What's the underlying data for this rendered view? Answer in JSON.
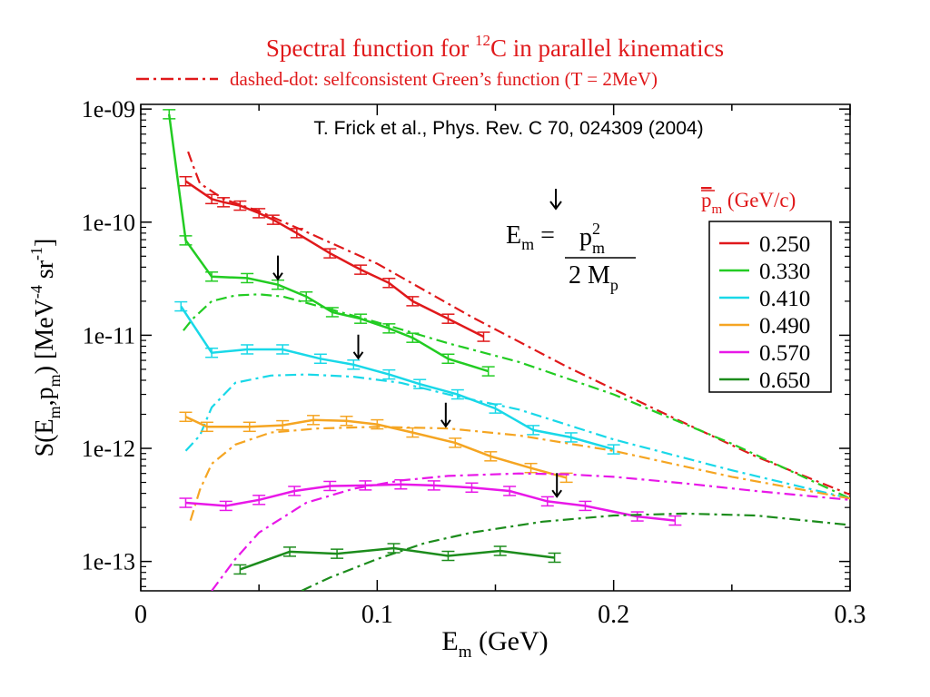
{
  "chart_data": {
    "type": "line",
    "title": "Spectral function for ¹²C in parallel kinematics",
    "title_parts": {
      "pre": "Spectral function for ",
      "sup": "12",
      "post": "C in parallel kinematics"
    },
    "subtitle": "dashed-dot: selfconsistent Green’s function (T = 2MeV)",
    "reference": "T. Frick et al., Phys. Rev. C 70, 024309 (2004)",
    "xlabel": "E_m (GeV)",
    "ylabel": "S(E_m,p_m) [MeV^-4 sr^-1]",
    "xlim": [
      0,
      0.3
    ],
    "ylim": [
      5.5e-14,
      1.1e-09
    ],
    "yscale": "log",
    "x_ticks": [
      0,
      0.1,
      0.2,
      0.3
    ],
    "x_tick_labels": [
      "0",
      "0.1",
      "0.2",
      "0.3"
    ],
    "y_ticks": [
      1e-13,
      1e-12,
      1e-11,
      1e-10,
      1e-09
    ],
    "y_tick_labels": [
      "1e-13",
      "1e-12",
      "1e-11",
      "1e-10",
      "1e-09"
    ],
    "legend_title": "p̄_m (GeV/c)",
    "legend_position": "right",
    "grid": false,
    "formula": "E_m = p²_m / 2 M_p",
    "series": [
      {
        "name": "0.250",
        "color": "#e0191b",
        "x": [
          0.019,
          0.03,
          0.035,
          0.042,
          0.05,
          0.056,
          0.066,
          0.08,
          0.093,
          0.105,
          0.115,
          0.13,
          0.145
        ],
        "y": [
          2.3e-10,
          1.6e-10,
          1.5e-10,
          1.4e-10,
          1.2e-10,
          1.05e-10,
          8e-11,
          5.3e-11,
          3.8e-11,
          2.9e-11,
          2e-11,
          1.4e-11,
          9.7e-12
        ],
        "theory_x": [
          0.02,
          0.022,
          0.025,
          0.035,
          0.05,
          0.07,
          0.1,
          0.14,
          0.18,
          0.22,
          0.26,
          0.3
        ],
        "theory_y": [
          4.2e-10,
          3.2e-10,
          2.2e-10,
          1.6e-10,
          1.25e-10,
          8.2e-11,
          4.3e-11,
          1.45e-11,
          5.3e-12,
          2.1e-12,
          8.5e-13,
          3.9e-13
        ]
      },
      {
        "name": "0.330",
        "color": "#22cc22",
        "x": [
          0.012,
          0.019,
          0.03,
          0.045,
          0.058,
          0.07,
          0.081,
          0.093,
          0.105,
          0.115,
          0.13,
          0.147
        ],
        "y": [
          9e-10,
          6.9e-11,
          3.3e-11,
          3.2e-11,
          2.8e-11,
          2.2e-11,
          1.6e-11,
          1.4e-11,
          1.15e-11,
          9.5e-12,
          6.2e-12,
          4.8e-12
        ],
        "theory_x": [
          0.018,
          0.022,
          0.03,
          0.04,
          0.05,
          0.06,
          0.08,
          0.1,
          0.13,
          0.16,
          0.2,
          0.25,
          0.3
        ],
        "theory_y": [
          1.1e-11,
          1.4e-11,
          2e-11,
          2.25e-11,
          2.3e-11,
          2.2e-11,
          1.7e-11,
          1.3e-11,
          8.5e-12,
          5.8e-12,
          3e-12,
          1.1e-12,
          3.6e-13
        ]
      },
      {
        "name": "0.410",
        "color": "#19d8e8",
        "x": [
          0.017,
          0.03,
          0.045,
          0.06,
          0.076,
          0.09,
          0.105,
          0.118,
          0.134,
          0.15,
          0.166,
          0.182,
          0.2
        ],
        "y": [
          1.8e-11,
          7e-12,
          7.5e-12,
          7.5e-12,
          6.2e-12,
          5.5e-12,
          4.5e-12,
          3.7e-12,
          3e-12,
          2.25e-12,
          1.45e-12,
          1.25e-12,
          9.8e-13
        ],
        "theory_x": [
          0.019,
          0.025,
          0.03,
          0.04,
          0.055,
          0.07,
          0.09,
          0.11,
          0.13,
          0.16,
          0.2,
          0.25,
          0.3
        ],
        "theory_y": [
          9.5e-13,
          1.3e-12,
          2.3e-12,
          3.8e-12,
          4.4e-12,
          4.5e-12,
          4.3e-12,
          3.8e-12,
          3e-12,
          2.2e-12,
          1.2e-12,
          6.4e-13,
          3.6e-13
        ]
      },
      {
        "name": "0.490",
        "color": "#f5a522",
        "x": [
          0.019,
          0.028,
          0.046,
          0.06,
          0.073,
          0.087,
          0.1,
          0.115,
          0.133,
          0.148,
          0.165,
          0.18
        ],
        "y": [
          1.9e-12,
          1.55e-12,
          1.55e-12,
          1.6e-12,
          1.78e-12,
          1.75e-12,
          1.63e-12,
          1.38e-12,
          1.12e-12,
          8.5e-13,
          6.7e-13,
          5.5e-13
        ],
        "theory_x": [
          0.021,
          0.025,
          0.03,
          0.04,
          0.055,
          0.075,
          0.1,
          0.13,
          0.16,
          0.2,
          0.25,
          0.3
        ],
        "theory_y": [
          2.3e-13,
          4.3e-13,
          7.3e-13,
          1.08e-12,
          1.38e-12,
          1.5e-12,
          1.55e-12,
          1.5e-12,
          1.3e-12,
          9.5e-13,
          5.6e-13,
          3.6e-13
        ]
      },
      {
        "name": "0.570",
        "color": "#e818e8",
        "x": [
          0.019,
          0.036,
          0.05,
          0.065,
          0.08,
          0.095,
          0.11,
          0.124,
          0.14,
          0.156,
          0.172,
          0.188,
          0.21,
          0.226
        ],
        "y": [
          3.3e-13,
          3.1e-13,
          3.5e-13,
          4.2e-13,
          4.65e-13,
          4.7e-13,
          4.8e-13,
          4.7e-13,
          4.5e-13,
          4.2e-13,
          3.4e-13,
          3.1e-13,
          2.5e-13,
          2.3e-13
        ],
        "theory_x": [
          0.03,
          0.04,
          0.05,
          0.07,
          0.09,
          0.11,
          0.13,
          0.16,
          0.18,
          0.2,
          0.23,
          0.26,
          0.3
        ],
        "theory_y": [
          5.5e-14,
          1.05e-13,
          1.8e-13,
          3.3e-13,
          4.4e-13,
          5.2e-13,
          5.7e-13,
          6e-13,
          5.9e-13,
          5.6e-13,
          4.9e-13,
          4.2e-13,
          3.5e-13
        ]
      },
      {
        "name": "0.650",
        "color": "#1c8c1c",
        "x": [
          0.042,
          0.063,
          0.083,
          0.107,
          0.13,
          0.152,
          0.175
        ],
        "y": [
          8.5e-14,
          1.22e-13,
          1.17e-13,
          1.31e-13,
          1.12e-13,
          1.24e-13,
          1.08e-13
        ],
        "theory_x": [
          0.068,
          0.08,
          0.1,
          0.12,
          0.14,
          0.17,
          0.2,
          0.23,
          0.26,
          0.3
        ],
        "theory_y": [
          5.5e-14,
          7.2e-14,
          1.05e-13,
          1.45e-13,
          1.8e-13,
          2.25e-13,
          2.55e-13,
          2.65e-13,
          2.55e-13,
          2.1e-13
        ]
      }
    ],
    "arrows_x": [
      0.058,
      0.092,
      0.129,
      0.176
    ],
    "formula_arrow": true
  }
}
